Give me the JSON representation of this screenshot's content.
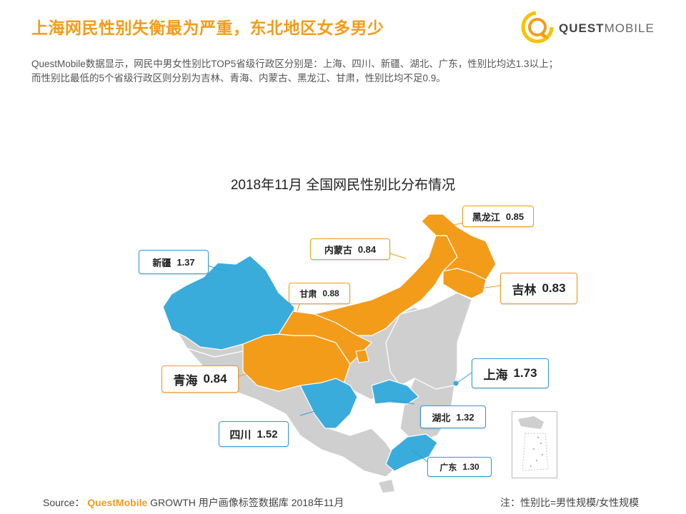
{
  "header": {
    "headline": "上海网民性别失衡最为严重，东北地区女多男少",
    "logo_bold": "QUEST",
    "logo_light": "MOBILE"
  },
  "intro": {
    "line1": "QuestMobile数据显示，网民中男女性别比TOP5省级行政区分别是：上海、四川、新疆、湖北、广东，性别比均达1.3以上；",
    "line2": "而性别比最低的5个省级行政区则分别为吉林、青海、内蒙古、黑龙江、甘肃，性别比均不足0.9。"
  },
  "colors": {
    "accent": "#f39c1a",
    "high": "#3aacdc",
    "low": "#f39c1a",
    "neutral": "#cfcfcf"
  },
  "chart_data": {
    "type": "map",
    "title": "2018年11月 全国网民性别比分布情况",
    "top5": [
      {
        "region": "上海",
        "value": 1.73
      },
      {
        "region": "四川",
        "value": 1.52
      },
      {
        "region": "新疆",
        "value": 1.37
      },
      {
        "region": "湖北",
        "value": 1.32
      },
      {
        "region": "广东",
        "value": 1.3
      }
    ],
    "bottom5": [
      {
        "region": "吉林",
        "value": 0.83
      },
      {
        "region": "青海",
        "value": 0.84
      },
      {
        "region": "内蒙古",
        "value": 0.84
      },
      {
        "region": "黑龙江",
        "value": 0.85
      },
      {
        "region": "甘肃",
        "value": 0.88
      }
    ]
  },
  "footer": {
    "source_label": "Source：",
    "source_brand": "QuestMobile",
    "source_rest": " GROWTH 用户画像标签数据库 2018年11月",
    "note": "注：性别比=男性规模/女性规模"
  }
}
